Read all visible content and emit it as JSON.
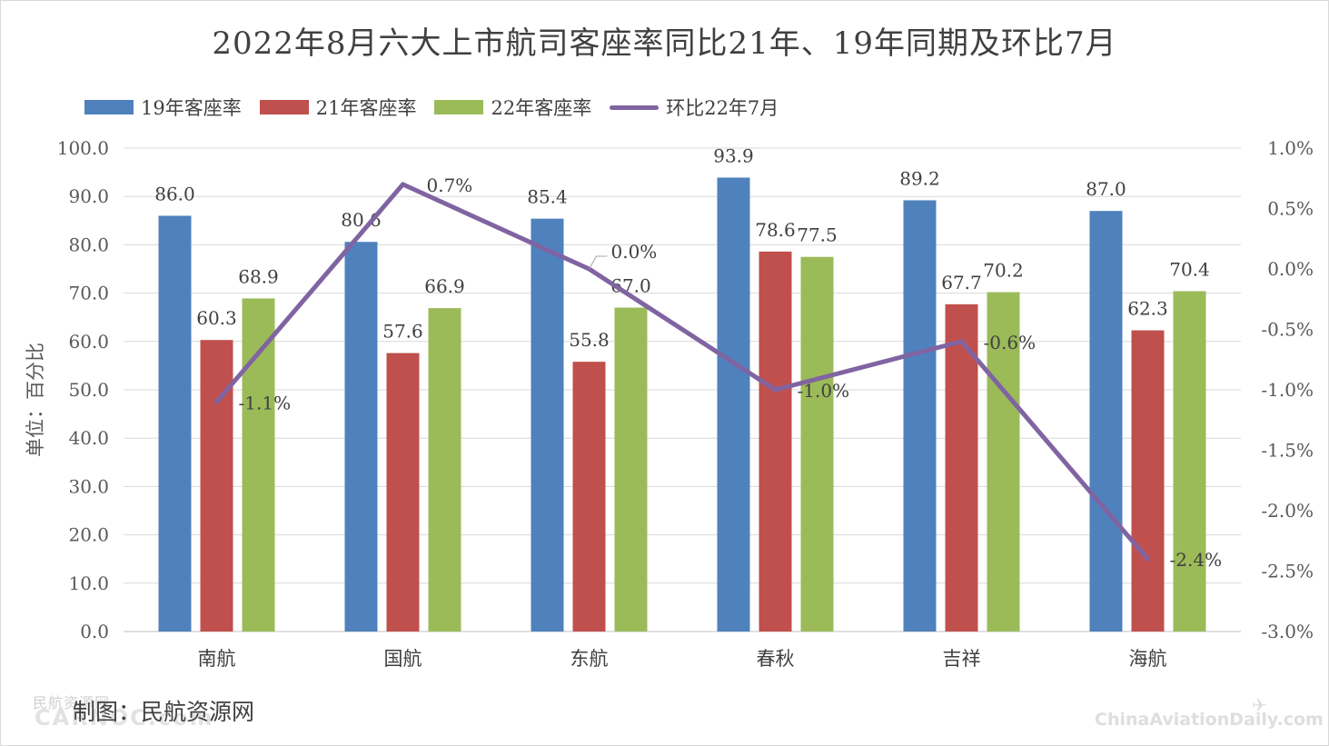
{
  "title": "2022年8月六大上市航司客座率同比21年、19年同期及环比7月",
  "legend": {
    "s19": "19年客座率",
    "s21": "21年客座率",
    "s22": "22年客座率",
    "line": "环比22年7月"
  },
  "ylabel": "单位：百分比",
  "footer": "制图：民航资源网",
  "watermarks": {
    "left_text": "民航资源网",
    "left_logo": "CARNOC.com",
    "right_text": "ChinaAviationDaily.com"
  },
  "colors": {
    "s19": "#4f81bd",
    "s21": "#c0504d",
    "s22": "#9bbb59",
    "line": "#8064a2",
    "grid": "#d9d9d9"
  },
  "chart_data": {
    "type": "bar",
    "categories": [
      "南航",
      "国航",
      "东航",
      "春秋",
      "吉祥",
      "海航"
    ],
    "series": [
      {
        "name": "19年客座率",
        "type": "bar",
        "axis": "left",
        "values": [
          86.0,
          80.6,
          85.4,
          93.9,
          89.2,
          87.0
        ],
        "labels": [
          "86.0",
          "80.6",
          "85.4",
          "93.9",
          "89.2",
          "87.0"
        ]
      },
      {
        "name": "21年客座率",
        "type": "bar",
        "axis": "left",
        "values": [
          60.3,
          57.6,
          55.8,
          78.6,
          67.7,
          62.3
        ],
        "labels": [
          "60.3",
          "57.6",
          "55.8",
          "78.6",
          "67.7",
          "62.3"
        ]
      },
      {
        "name": "22年客座率",
        "type": "bar",
        "axis": "left",
        "values": [
          68.9,
          66.9,
          67.0,
          77.5,
          70.2,
          70.4
        ],
        "labels": [
          "68.9",
          "66.9",
          "67.0",
          "77.5",
          "70.2",
          "70.4"
        ]
      },
      {
        "name": "环比22年7月",
        "type": "line",
        "axis": "right",
        "values": [
          -1.1,
          0.7,
          0.0,
          -1.0,
          -0.6,
          -2.4
        ],
        "labels": [
          "-1.1%",
          "0.7%",
          "0.0%",
          "-1.0%",
          "-0.6%",
          "-2.4%"
        ]
      }
    ],
    "y_left": {
      "min": 0,
      "max": 100,
      "ticks": [
        "0.0",
        "10.0",
        "20.0",
        "30.0",
        "40.0",
        "50.0",
        "60.0",
        "70.0",
        "80.0",
        "90.0",
        "100.0"
      ]
    },
    "y_right": {
      "min": -3.0,
      "max": 1.0,
      "ticks": [
        "-3.0%",
        "-2.5%",
        "-2.0%",
        "-1.5%",
        "-1.0%",
        "-0.5%",
        "0.0%",
        "0.5%",
        "1.0%"
      ]
    },
    "grid": true,
    "legend_position": "top-left"
  }
}
